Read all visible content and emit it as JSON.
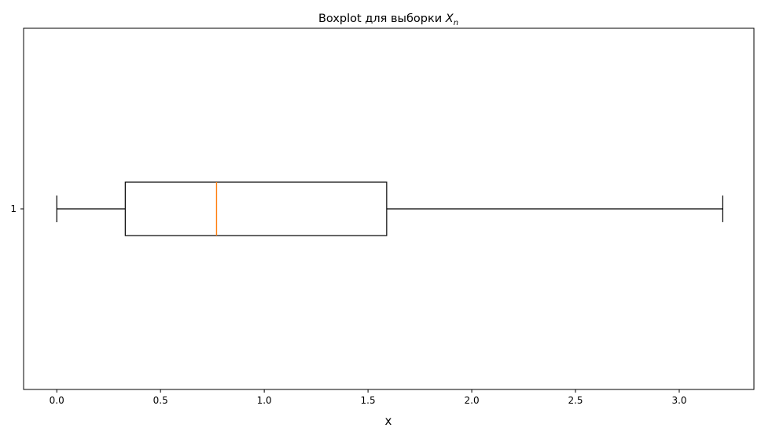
{
  "chart_data": {
    "type": "boxplot",
    "orientation": "horizontal",
    "title": {
      "prefix": "Boxplot для выборки ",
      "var_main": "X",
      "var_sub": "n"
    },
    "xlabel": "x",
    "ylabel": "",
    "xlim": [
      -0.16,
      3.36
    ],
    "x_ticks": [
      0.0,
      0.5,
      1.0,
      1.5,
      2.0,
      2.5,
      3.0
    ],
    "x_tick_labels": [
      "0.0",
      "0.5",
      "1.0",
      "1.5",
      "2.0",
      "2.5",
      "3.0"
    ],
    "y_ticks": [
      1
    ],
    "y_tick_labels": [
      "1"
    ],
    "boxes": [
      {
        "position": 1,
        "whisker_low": 0.0,
        "q1": 0.33,
        "median": 0.77,
        "q3": 1.59,
        "whisker_high": 3.21,
        "outliers": []
      }
    ],
    "grid": false,
    "legend": false,
    "colors": {
      "box": "#000000",
      "median": "#ff7f0e",
      "axes": "#000000",
      "background": "#ffffff"
    }
  }
}
